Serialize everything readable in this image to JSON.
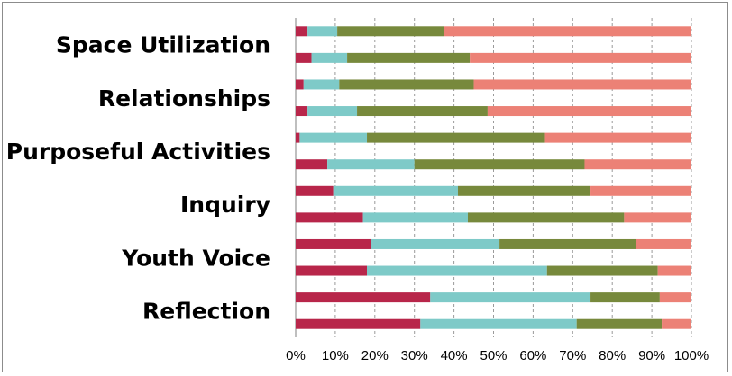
{
  "chart_data": {
    "type": "bar",
    "orientation": "horizontal",
    "stacked": true,
    "percent": true,
    "title": "",
    "xlabel": "",
    "ylabel": "",
    "xlim": [
      0,
      100
    ],
    "x_ticks": [
      "0%",
      "10%",
      "20%",
      "30%",
      "40%",
      "50%",
      "60%",
      "70%",
      "80%",
      "90%",
      "100%"
    ],
    "category_labels": [
      "Space Utilization",
      "Relationships",
      "Purposeful Activities",
      "Inquiry",
      "Youth Voice",
      "Reflection"
    ],
    "grid": true,
    "legend": "none",
    "colors": [
      "#b8264a",
      "#7ecac8",
      "#77893c",
      "#ec8176"
    ],
    "rows": [
      [
        3,
        7.5,
        27,
        62.5
      ],
      [
        4,
        9,
        31,
        56
      ],
      [
        2,
        9,
        34,
        55
      ],
      [
        3,
        12.5,
        33,
        51.5
      ],
      [
        1,
        17,
        45,
        37
      ],
      [
        8,
        22,
        43,
        27
      ],
      [
        9.5,
        31.5,
        33.5,
        25.5
      ],
      [
        17,
        26.5,
        39.5,
        17
      ],
      [
        19,
        32.5,
        34.5,
        14
      ],
      [
        18,
        45.5,
        28,
        8.5
      ],
      [
        34,
        40.5,
        17.5,
        8
      ],
      [
        31.5,
        39.5,
        21.5,
        7.5
      ]
    ]
  }
}
